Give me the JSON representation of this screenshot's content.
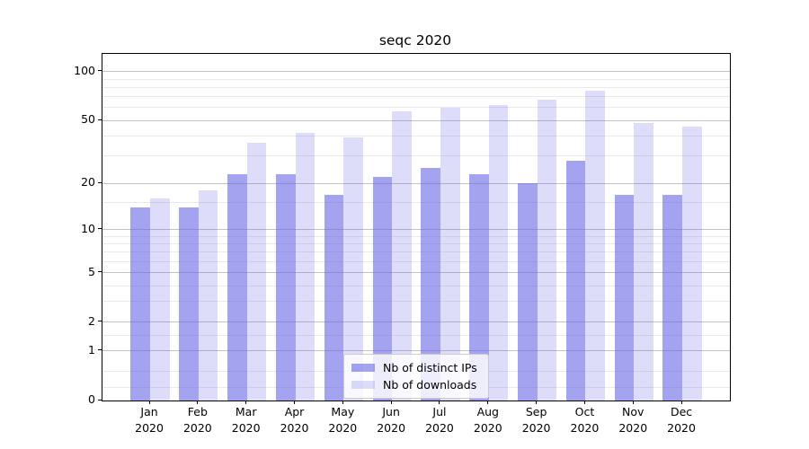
{
  "title": "seqc 2020",
  "legend": {
    "entries": [
      {
        "label": "Nb of distinct IPs"
      },
      {
        "label": "Nb of downloads"
      }
    ]
  },
  "chart_data": {
    "type": "bar",
    "title": "seqc 2020",
    "xlabel": "",
    "ylabel": "",
    "yscale": "log1p",
    "ylim": [
      0,
      128.6
    ],
    "grid": true,
    "legend_position": "lower center",
    "categories": [
      "Jan\n2020",
      "Feb\n2020",
      "Mar\n2020",
      "Apr\n2020",
      "May\n2020",
      "Jun\n2020",
      "Jul\n2020",
      "Aug\n2020",
      "Sep\n2020",
      "Oct\n2020",
      "Nov\n2020",
      "Dec\n2020"
    ],
    "series": [
      {
        "name": "Nb of distinct IPs",
        "color": "rgba(102,102,230,0.6)",
        "values": [
          14,
          14,
          23,
          23,
          17,
          22,
          25,
          23,
          20,
          28,
          17,
          17
        ]
      },
      {
        "name": "Nb of downloads",
        "color": "rgba(102,102,230,0.22)",
        "values": [
          16,
          18,
          36,
          42,
          39,
          57,
          60,
          62,
          67,
          76,
          48,
          46
        ]
      }
    ],
    "y_major_ticks": [
      100,
      50,
      20,
      10,
      5,
      2,
      1,
      0
    ],
    "y_minor_gridlines": [
      0.2,
      0.5,
      1.5,
      3,
      4,
      6,
      7,
      8,
      9,
      15,
      30,
      40,
      60,
      70,
      80,
      90
    ],
    "colors": {
      "major_grid": "#c2c2c2",
      "minor_grid": "#e9e9e9",
      "axis": "#000000",
      "legend_border": "#cccccc",
      "legend_background": "rgba(255,255,255,0.8)"
    }
  }
}
